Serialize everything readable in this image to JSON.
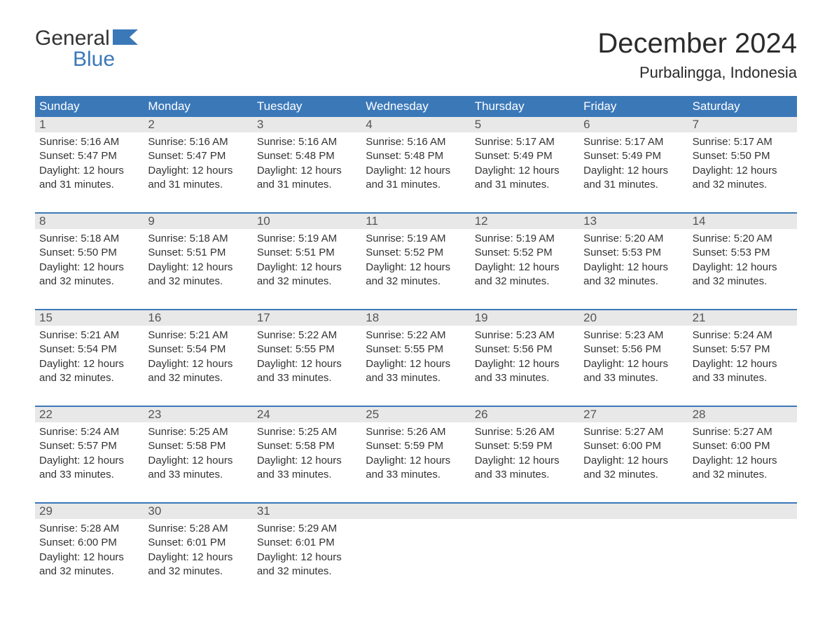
{
  "logo": {
    "word1": "General",
    "word2": "Blue"
  },
  "title": "December 2024",
  "location": "Purbalingga, Indonesia",
  "colors": {
    "header_bg": "#3b78b8",
    "header_text": "#ffffff",
    "daynum_bg": "#e8e8e8",
    "text": "#333333",
    "logo_blue": "#3b78b8"
  },
  "weekdays": [
    "Sunday",
    "Monday",
    "Tuesday",
    "Wednesday",
    "Thursday",
    "Friday",
    "Saturday"
  ],
  "weeks": [
    {
      "nums": [
        "1",
        "2",
        "3",
        "4",
        "5",
        "6",
        "7"
      ],
      "days": [
        {
          "sunrise": "Sunrise: 5:16 AM",
          "sunset": "Sunset: 5:47 PM",
          "d1": "Daylight: 12 hours",
          "d2": "and 31 minutes."
        },
        {
          "sunrise": "Sunrise: 5:16 AM",
          "sunset": "Sunset: 5:47 PM",
          "d1": "Daylight: 12 hours",
          "d2": "and 31 minutes."
        },
        {
          "sunrise": "Sunrise: 5:16 AM",
          "sunset": "Sunset: 5:48 PM",
          "d1": "Daylight: 12 hours",
          "d2": "and 31 minutes."
        },
        {
          "sunrise": "Sunrise: 5:16 AM",
          "sunset": "Sunset: 5:48 PM",
          "d1": "Daylight: 12 hours",
          "d2": "and 31 minutes."
        },
        {
          "sunrise": "Sunrise: 5:17 AM",
          "sunset": "Sunset: 5:49 PM",
          "d1": "Daylight: 12 hours",
          "d2": "and 31 minutes."
        },
        {
          "sunrise": "Sunrise: 5:17 AM",
          "sunset": "Sunset: 5:49 PM",
          "d1": "Daylight: 12 hours",
          "d2": "and 31 minutes."
        },
        {
          "sunrise": "Sunrise: 5:17 AM",
          "sunset": "Sunset: 5:50 PM",
          "d1": "Daylight: 12 hours",
          "d2": "and 32 minutes."
        }
      ]
    },
    {
      "nums": [
        "8",
        "9",
        "10",
        "11",
        "12",
        "13",
        "14"
      ],
      "days": [
        {
          "sunrise": "Sunrise: 5:18 AM",
          "sunset": "Sunset: 5:50 PM",
          "d1": "Daylight: 12 hours",
          "d2": "and 32 minutes."
        },
        {
          "sunrise": "Sunrise: 5:18 AM",
          "sunset": "Sunset: 5:51 PM",
          "d1": "Daylight: 12 hours",
          "d2": "and 32 minutes."
        },
        {
          "sunrise": "Sunrise: 5:19 AM",
          "sunset": "Sunset: 5:51 PM",
          "d1": "Daylight: 12 hours",
          "d2": "and 32 minutes."
        },
        {
          "sunrise": "Sunrise: 5:19 AM",
          "sunset": "Sunset: 5:52 PM",
          "d1": "Daylight: 12 hours",
          "d2": "and 32 minutes."
        },
        {
          "sunrise": "Sunrise: 5:19 AM",
          "sunset": "Sunset: 5:52 PM",
          "d1": "Daylight: 12 hours",
          "d2": "and 32 minutes."
        },
        {
          "sunrise": "Sunrise: 5:20 AM",
          "sunset": "Sunset: 5:53 PM",
          "d1": "Daylight: 12 hours",
          "d2": "and 32 minutes."
        },
        {
          "sunrise": "Sunrise: 5:20 AM",
          "sunset": "Sunset: 5:53 PM",
          "d1": "Daylight: 12 hours",
          "d2": "and 32 minutes."
        }
      ]
    },
    {
      "nums": [
        "15",
        "16",
        "17",
        "18",
        "19",
        "20",
        "21"
      ],
      "days": [
        {
          "sunrise": "Sunrise: 5:21 AM",
          "sunset": "Sunset: 5:54 PM",
          "d1": "Daylight: 12 hours",
          "d2": "and 32 minutes."
        },
        {
          "sunrise": "Sunrise: 5:21 AM",
          "sunset": "Sunset: 5:54 PM",
          "d1": "Daylight: 12 hours",
          "d2": "and 32 minutes."
        },
        {
          "sunrise": "Sunrise: 5:22 AM",
          "sunset": "Sunset: 5:55 PM",
          "d1": "Daylight: 12 hours",
          "d2": "and 33 minutes."
        },
        {
          "sunrise": "Sunrise: 5:22 AM",
          "sunset": "Sunset: 5:55 PM",
          "d1": "Daylight: 12 hours",
          "d2": "and 33 minutes."
        },
        {
          "sunrise": "Sunrise: 5:23 AM",
          "sunset": "Sunset: 5:56 PM",
          "d1": "Daylight: 12 hours",
          "d2": "and 33 minutes."
        },
        {
          "sunrise": "Sunrise: 5:23 AM",
          "sunset": "Sunset: 5:56 PM",
          "d1": "Daylight: 12 hours",
          "d2": "and 33 minutes."
        },
        {
          "sunrise": "Sunrise: 5:24 AM",
          "sunset": "Sunset: 5:57 PM",
          "d1": "Daylight: 12 hours",
          "d2": "and 33 minutes."
        }
      ]
    },
    {
      "nums": [
        "22",
        "23",
        "24",
        "25",
        "26",
        "27",
        "28"
      ],
      "days": [
        {
          "sunrise": "Sunrise: 5:24 AM",
          "sunset": "Sunset: 5:57 PM",
          "d1": "Daylight: 12 hours",
          "d2": "and 33 minutes."
        },
        {
          "sunrise": "Sunrise: 5:25 AM",
          "sunset": "Sunset: 5:58 PM",
          "d1": "Daylight: 12 hours",
          "d2": "and 33 minutes."
        },
        {
          "sunrise": "Sunrise: 5:25 AM",
          "sunset": "Sunset: 5:58 PM",
          "d1": "Daylight: 12 hours",
          "d2": "and 33 minutes."
        },
        {
          "sunrise": "Sunrise: 5:26 AM",
          "sunset": "Sunset: 5:59 PM",
          "d1": "Daylight: 12 hours",
          "d2": "and 33 minutes."
        },
        {
          "sunrise": "Sunrise: 5:26 AM",
          "sunset": "Sunset: 5:59 PM",
          "d1": "Daylight: 12 hours",
          "d2": "and 33 minutes."
        },
        {
          "sunrise": "Sunrise: 5:27 AM",
          "sunset": "Sunset: 6:00 PM",
          "d1": "Daylight: 12 hours",
          "d2": "and 32 minutes."
        },
        {
          "sunrise": "Sunrise: 5:27 AM",
          "sunset": "Sunset: 6:00 PM",
          "d1": "Daylight: 12 hours",
          "d2": "and 32 minutes."
        }
      ]
    },
    {
      "nums": [
        "29",
        "30",
        "31",
        "",
        "",
        "",
        ""
      ],
      "days": [
        {
          "sunrise": "Sunrise: 5:28 AM",
          "sunset": "Sunset: 6:00 PM",
          "d1": "Daylight: 12 hours",
          "d2": "and 32 minutes."
        },
        {
          "sunrise": "Sunrise: 5:28 AM",
          "sunset": "Sunset: 6:01 PM",
          "d1": "Daylight: 12 hours",
          "d2": "and 32 minutes."
        },
        {
          "sunrise": "Sunrise: 5:29 AM",
          "sunset": "Sunset: 6:01 PM",
          "d1": "Daylight: 12 hours",
          "d2": "and 32 minutes."
        },
        null,
        null,
        null,
        null
      ]
    }
  ]
}
